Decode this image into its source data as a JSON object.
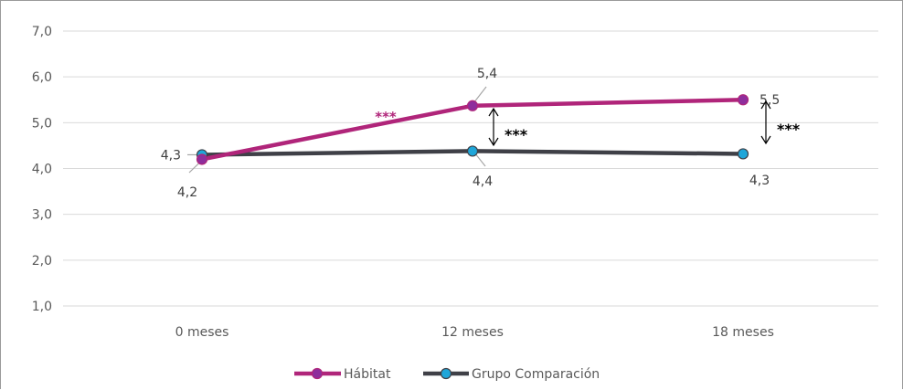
{
  "chart_data": {
    "type": "line",
    "categories": [
      "0 meses",
      "12 meses",
      "18 meses"
    ],
    "ylim": [
      1.0,
      7.0
    ],
    "yticks": [
      "1,0",
      "2,0",
      "3,0",
      "4,0",
      "5,0",
      "6,0",
      "7,0"
    ],
    "ytick_values": [
      1,
      2,
      3,
      4,
      5,
      6,
      7
    ],
    "grid": true,
    "legend_position": "bottom",
    "series": [
      {
        "name": "Hábitat",
        "values": [
          4.2,
          5.37,
          5.5
        ],
        "labels": [
          "4,2",
          "5,4",
          "5,5"
        ],
        "line_color": "#b0257a",
        "marker_color": "#8e2e9c"
      },
      {
        "name": "Grupo Comparación",
        "values": [
          4.3,
          4.38,
          4.32
        ],
        "labels": [
          "4,3",
          "4,4",
          "4,3"
        ],
        "line_color": "#3f4047",
        "marker_color": "#1fa6d9"
      }
    ],
    "annotations": [
      {
        "text": "***",
        "color": "#b0257a",
        "note": "between 0 meses and 12 meses on Hábitat line"
      },
      {
        "text": "***",
        "color": "#000000",
        "note": "difference at 12 meses"
      },
      {
        "text": "***",
        "color": "#000000",
        "note": "difference at 18 meses"
      }
    ]
  }
}
